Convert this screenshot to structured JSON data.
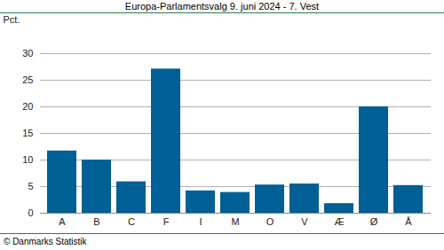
{
  "chart_data": {
    "type": "bar",
    "title": "Europa-Parlamentsvalg 9. juni 2024 - 7. Vest",
    "y_label": "Pct.",
    "caption": "© Danmarks Statistik",
    "categories": [
      "A",
      "B",
      "C",
      "F",
      "I",
      "M",
      "O",
      "V",
      "Æ",
      "Ø",
      "Å"
    ],
    "values": [
      11.7,
      10.0,
      5.9,
      27.1,
      4.2,
      3.9,
      5.3,
      5.5,
      1.8,
      20.0,
      5.2
    ],
    "color": "#005f94",
    "ylim": [
      0,
      30
    ],
    "yticks": [
      0,
      5,
      10,
      15,
      20,
      25,
      30
    ],
    "grid": true
  }
}
